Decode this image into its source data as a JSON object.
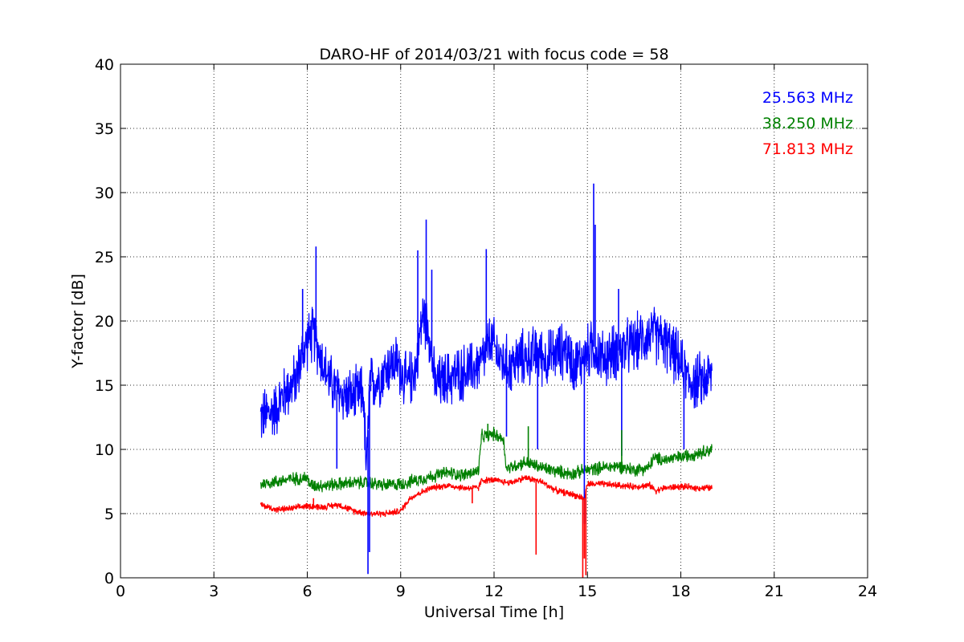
{
  "chart_data": {
    "type": "line",
    "title": "DARO-HF of 2014/03/21 with focus code = 58",
    "xlabel": "Universal Time [h]",
    "ylabel": "Y-factor [dB]",
    "xlim": [
      0,
      24
    ],
    "ylim": [
      0,
      40
    ],
    "xticks": [
      "0",
      "3",
      "6",
      "9",
      "12",
      "15",
      "18",
      "21",
      "24"
    ],
    "yticks": [
      "0",
      "5",
      "10",
      "15",
      "20",
      "25",
      "30",
      "35",
      "40"
    ],
    "grid": true,
    "legend_position": "top-right",
    "series": [
      {
        "name": "25.563 MHz",
        "color": "#0000ff",
        "noise": 2.2,
        "x": [
          4.5,
          4.8,
          5.0,
          5.3,
          5.6,
          5.8,
          6.0,
          6.2,
          6.4,
          6.6,
          6.8,
          7.0,
          7.2,
          7.5,
          7.8,
          7.9,
          8.0,
          8.3,
          8.6,
          8.9,
          9.2,
          9.5,
          9.7,
          9.9,
          10.1,
          10.5,
          11.0,
          11.3,
          11.6,
          11.9,
          12.2,
          12.5,
          12.8,
          13.1,
          13.4,
          13.7,
          14.0,
          14.3,
          14.6,
          14.8,
          15.0,
          15.2,
          15.5,
          15.8,
          16.1,
          16.4,
          16.7,
          17.0,
          17.3,
          17.6,
          17.9,
          18.2,
          18.5,
          18.8,
          19.0
        ],
        "y": [
          12.5,
          12.8,
          13.2,
          14.5,
          15.2,
          17.0,
          18.5,
          19.0,
          17.5,
          16.0,
          15.0,
          14.5,
          14.2,
          14.0,
          14.5,
          8.0,
          15.0,
          15.5,
          16.5,
          16.8,
          15.0,
          16.5,
          20.5,
          19.5,
          15.0,
          15.5,
          16.0,
          16.2,
          16.8,
          18.5,
          17.0,
          16.5,
          17.0,
          17.2,
          17.5,
          17.0,
          17.5,
          17.8,
          16.5,
          17.0,
          17.5,
          18.0,
          17.0,
          17.5,
          17.8,
          18.0,
          18.5,
          19.0,
          18.8,
          18.0,
          17.0,
          15.5,
          15.2,
          15.5,
          15.8
        ]
      },
      {
        "name": "38.250 MHz",
        "color": "#008000",
        "noise": 0.5,
        "x": [
          4.5,
          5.0,
          5.5,
          6.0,
          6.1,
          6.5,
          7.0,
          7.5,
          8.0,
          8.5,
          9.0,
          9.5,
          10.0,
          10.5,
          11.0,
          11.5,
          11.6,
          12.0,
          12.3,
          12.4,
          13.0,
          13.5,
          14.0,
          14.5,
          15.0,
          15.5,
          16.0,
          16.5,
          17.0,
          17.1,
          17.5,
          18.0,
          18.5,
          19.0
        ],
        "y": [
          7.3,
          7.5,
          7.7,
          7.8,
          7.2,
          7.2,
          7.3,
          7.4,
          7.4,
          7.2,
          7.3,
          7.6,
          7.9,
          8.2,
          8.0,
          8.3,
          11.0,
          11.2,
          10.8,
          8.5,
          9.0,
          8.6,
          8.3,
          8.1,
          8.4,
          8.6,
          8.7,
          8.4,
          8.6,
          9.3,
          9.2,
          9.4,
          9.7,
          10.0
        ]
      },
      {
        "name": "71.813 MHz",
        "color": "#ff0000",
        "noise": 0.25,
        "x": [
          4.5,
          5.0,
          5.5,
          6.0,
          6.5,
          7.0,
          7.5,
          8.0,
          8.5,
          9.0,
          9.3,
          9.6,
          10.0,
          10.5,
          11.0,
          11.5,
          11.6,
          12.0,
          12.5,
          13.0,
          13.5,
          14.0,
          14.5,
          14.9,
          15.0,
          15.5,
          16.0,
          16.5,
          17.0,
          17.2,
          17.5,
          18.0,
          18.5,
          19.0
        ],
        "y": [
          5.7,
          5.3,
          5.4,
          5.6,
          5.5,
          5.7,
          5.2,
          5.0,
          5.0,
          5.2,
          6.2,
          6.6,
          7.0,
          7.2,
          7.0,
          7.0,
          7.6,
          7.6,
          7.4,
          7.8,
          7.5,
          6.8,
          6.5,
          6.2,
          7.3,
          7.3,
          7.2,
          7.1,
          7.2,
          6.8,
          7.0,
          7.1,
          7.0,
          7.0
        ]
      }
    ],
    "spikes": [
      {
        "series": 0,
        "x": [
          6.28,
          9.55,
          9.82,
          11.75,
          15.2,
          15.25,
          5.85,
          10.0,
          16.0
        ],
        "y": [
          25.8,
          25.5,
          27.9,
          25.6,
          30.7,
          27.5,
          22.5,
          24.0,
          22.5
        ]
      },
      {
        "series": 0,
        "x": [
          6.95,
          7.95,
          8.0,
          13.4,
          14.9,
          16.1,
          18.1,
          12.4
        ],
        "y": [
          8.5,
          0.3,
          2.0,
          10.0,
          4.2,
          9.5,
          10.0,
          11.0
        ]
      },
      {
        "series": 1,
        "x": [
          13.1,
          16.1,
          11.8
        ],
        "y": [
          11.8,
          11.5,
          12.0
        ]
      },
      {
        "series": 2,
        "x": [
          13.35,
          14.85,
          14.9,
          14.95,
          6.2,
          11.3
        ],
        "y": [
          1.8,
          0.0,
          1.5,
          0.2,
          6.2,
          5.8
        ]
      }
    ]
  }
}
